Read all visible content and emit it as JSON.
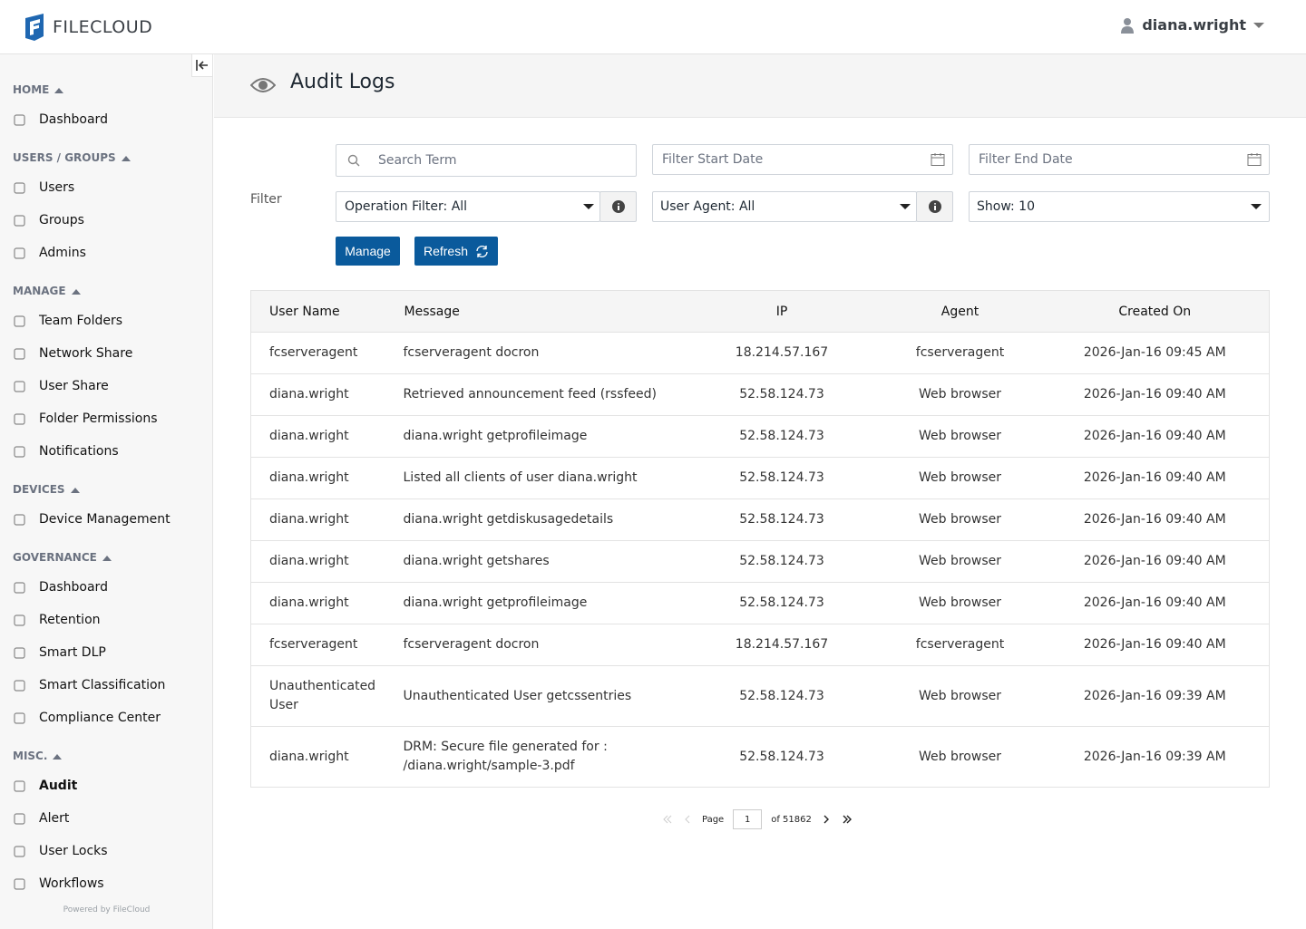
{
  "header": {
    "brand": "FILECLOUD",
    "user": "diana.wright"
  },
  "sidebar": {
    "sections": [
      {
        "title": "HOME",
        "items": [
          "Dashboard"
        ]
      },
      {
        "title": "USERS / GROUPS",
        "items": [
          "Users",
          "Groups",
          "Admins"
        ]
      },
      {
        "title": "MANAGE",
        "items": [
          "Team Folders",
          "Network Share",
          "User Share",
          "Folder Permissions",
          "Notifications"
        ]
      },
      {
        "title": "DEVICES",
        "items": [
          "Device Management"
        ]
      },
      {
        "title": "GOVERNANCE",
        "items": [
          "Dashboard",
          "Retention",
          "Smart DLP",
          "Smart Classification",
          "Compliance Center"
        ]
      },
      {
        "title": "MISC.",
        "items": [
          "Audit",
          "Alert",
          "User Locks",
          "Workflows"
        ]
      }
    ],
    "footer": "Powered by FileCloud"
  },
  "page": {
    "title": "Audit Logs"
  },
  "filters": {
    "label": "Filter",
    "search": "Search Term",
    "start_date": "Filter Start Date",
    "end_date": "Filter End Date",
    "operation": "Operation Filter: All",
    "agent": "User Agent: All",
    "show": "Show: 10",
    "manage": "Manage",
    "refresh": "Refresh"
  },
  "table": {
    "columns": [
      "User Name",
      "Message",
      "IP",
      "Agent",
      "Created On"
    ],
    "rows": [
      [
        "fcserveragent",
        "fcserveragent docron",
        "18.214.57.167",
        "fcserveragent",
        "2026-Jan-16 09:45 AM"
      ],
      [
        "diana.wright",
        "Retrieved announcement feed (rssfeed)",
        "52.58.124.73",
        "Web browser",
        "2026-Jan-16 09:40 AM"
      ],
      [
        "diana.wright",
        "diana.wright getprofileimage",
        "52.58.124.73",
        "Web browser",
        "2026-Jan-16 09:40 AM"
      ],
      [
        "diana.wright",
        "Listed all clients of user diana.wright",
        "52.58.124.73",
        "Web browser",
        "2026-Jan-16 09:40 AM"
      ],
      [
        "diana.wright",
        "diana.wright getdiskusagedetails",
        "52.58.124.73",
        "Web browser",
        "2026-Jan-16 09:40 AM"
      ],
      [
        "diana.wright",
        "diana.wright getshares",
        "52.58.124.73",
        "Web browser",
        "2026-Jan-16 09:40 AM"
      ],
      [
        "diana.wright",
        "diana.wright getprofileimage",
        "52.58.124.73",
        "Web browser",
        "2026-Jan-16 09:40 AM"
      ],
      [
        "fcserveragent",
        "fcserveragent docron",
        "18.214.57.167",
        "fcserveragent",
        "2026-Jan-16 09:40 AM"
      ],
      [
        "Unauthenticated User",
        "Unauthenticated User getcssentries",
        "52.58.124.73",
        "Web browser",
        "2026-Jan-16 09:39 AM"
      ],
      [
        "diana.wright",
        "DRM: Secure file generated for : /diana.wright/sample-3.pdf",
        "52.58.124.73",
        "Web browser",
        "2026-Jan-16 09:39 AM"
      ]
    ]
  },
  "pagination": {
    "page_label": "Page",
    "page": "1",
    "of": "of 51862"
  }
}
